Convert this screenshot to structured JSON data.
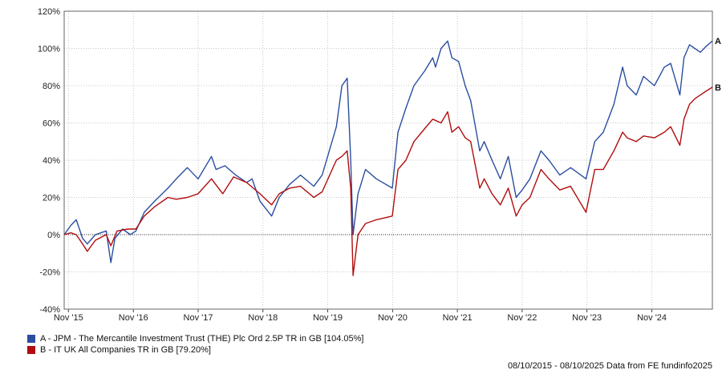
{
  "chart_data": {
    "type": "line",
    "ylim": [
      -40,
      120
    ],
    "yticks": [
      "120%",
      "100%",
      "80%",
      "60%",
      "40%",
      "20%",
      "0%",
      "-20%",
      "-40%"
    ],
    "ytick_values": [
      120,
      100,
      80,
      60,
      40,
      20,
      0,
      -20,
      -40
    ],
    "xlim": [
      "2015-10-08",
      "2025-10-08"
    ],
    "xticks": [
      "Nov '15",
      "Nov '16",
      "Nov '17",
      "Nov '18",
      "Nov '19",
      "Nov '20",
      "Nov '21",
      "Nov '22",
      "Nov '23",
      "Nov '24"
    ],
    "xtick_dates": [
      "2015-11-01",
      "2016-11-01",
      "2017-11-01",
      "2018-11-01",
      "2019-11-01",
      "2020-11-01",
      "2021-11-01",
      "2022-11-01",
      "2023-11-01",
      "2024-11-01"
    ],
    "grid": true,
    "series": [
      {
        "name": "A - JPM - The Mercantile Investment Trust (THE) Plc Ord 2.5P TR in GB [104.05%]",
        "end_label": "A",
        "color": "#2a4ea0",
        "points": [
          [
            "2015-10-08",
            0
          ],
          [
            "2015-11-15",
            5
          ],
          [
            "2015-12-15",
            8
          ],
          [
            "2016-01-20",
            -2
          ],
          [
            "2016-02-15",
            -5
          ],
          [
            "2016-04-01",
            0
          ],
          [
            "2016-06-01",
            2
          ],
          [
            "2016-06-27",
            -15
          ],
          [
            "2016-07-20",
            -2
          ],
          [
            "2016-09-01",
            3
          ],
          [
            "2016-10-15",
            0
          ],
          [
            "2016-11-15",
            2
          ],
          [
            "2017-01-01",
            12
          ],
          [
            "2017-03-01",
            18
          ],
          [
            "2017-05-15",
            25
          ],
          [
            "2017-07-01",
            30
          ],
          [
            "2017-09-01",
            36
          ],
          [
            "2017-11-01",
            30
          ],
          [
            "2018-01-15",
            42
          ],
          [
            "2018-02-10",
            35
          ],
          [
            "2018-04-01",
            37
          ],
          [
            "2018-06-01",
            32
          ],
          [
            "2018-08-01",
            28
          ],
          [
            "2018-09-01",
            30
          ],
          [
            "2018-10-15",
            18
          ],
          [
            "2018-12-20",
            10
          ],
          [
            "2019-02-01",
            20
          ],
          [
            "2019-04-01",
            27
          ],
          [
            "2019-06-01",
            32
          ],
          [
            "2019-08-15",
            26
          ],
          [
            "2019-10-01",
            32
          ],
          [
            "2019-12-20",
            58
          ],
          [
            "2020-01-20",
            80
          ],
          [
            "2020-02-19",
            84
          ],
          [
            "2020-03-10",
            40
          ],
          [
            "2020-03-23",
            0
          ],
          [
            "2020-04-20",
            22
          ],
          [
            "2020-06-01",
            35
          ],
          [
            "2020-08-01",
            30
          ],
          [
            "2020-10-30",
            25
          ],
          [
            "2020-12-01",
            55
          ],
          [
            "2021-01-15",
            68
          ],
          [
            "2021-03-01",
            80
          ],
          [
            "2021-05-01",
            88
          ],
          [
            "2021-06-15",
            95
          ],
          [
            "2021-07-01",
            90
          ],
          [
            "2021-08-01",
            100
          ],
          [
            "2021-09-07",
            104
          ],
          [
            "2021-10-01",
            95
          ],
          [
            "2021-11-08",
            93
          ],
          [
            "2021-12-15",
            80
          ],
          [
            "2022-01-15",
            72
          ],
          [
            "2022-03-07",
            45
          ],
          [
            "2022-04-01",
            50
          ],
          [
            "2022-05-15",
            40
          ],
          [
            "2022-07-01",
            30
          ],
          [
            "2022-08-15",
            42
          ],
          [
            "2022-09-28",
            20
          ],
          [
            "2022-11-01",
            24
          ],
          [
            "2022-12-15",
            30
          ],
          [
            "2023-02-15",
            45
          ],
          [
            "2023-04-01",
            40
          ],
          [
            "2023-06-01",
            32
          ],
          [
            "2023-08-01",
            36
          ],
          [
            "2023-10-27",
            30
          ],
          [
            "2023-12-15",
            50
          ],
          [
            "2024-02-01",
            55
          ],
          [
            "2024-04-01",
            70
          ],
          [
            "2024-05-20",
            90
          ],
          [
            "2024-06-15",
            80
          ],
          [
            "2024-08-05",
            75
          ],
          [
            "2024-09-15",
            85
          ],
          [
            "2024-11-15",
            80
          ],
          [
            "2025-01-10",
            90
          ],
          [
            "2025-02-15",
            92
          ],
          [
            "2025-04-08",
            75
          ],
          [
            "2025-05-01",
            95
          ],
          [
            "2025-06-01",
            102
          ],
          [
            "2025-07-01",
            100
          ],
          [
            "2025-08-01",
            98
          ],
          [
            "2025-09-01",
            101
          ],
          [
            "2025-10-08",
            104.05
          ]
        ]
      },
      {
        "name": "B - IT UK All Companies TR in GB [79.20%]",
        "end_label": "B",
        "color": "#b00d0d",
        "points": [
          [
            "2015-10-08",
            0
          ],
          [
            "2015-11-15",
            1
          ],
          [
            "2015-12-15",
            0
          ],
          [
            "2016-01-20",
            -5
          ],
          [
            "2016-02-15",
            -9
          ],
          [
            "2016-04-01",
            -3
          ],
          [
            "2016-06-01",
            0
          ],
          [
            "2016-06-27",
            -6
          ],
          [
            "2016-08-01",
            2
          ],
          [
            "2016-10-01",
            3
          ],
          [
            "2016-11-15",
            3
          ],
          [
            "2017-01-01",
            10
          ],
          [
            "2017-03-01",
            15
          ],
          [
            "2017-05-15",
            20
          ],
          [
            "2017-07-01",
            19
          ],
          [
            "2017-09-01",
            20
          ],
          [
            "2017-11-01",
            22
          ],
          [
            "2018-01-15",
            30
          ],
          [
            "2018-03-20",
            22
          ],
          [
            "2018-05-20",
            31
          ],
          [
            "2018-08-01",
            28
          ],
          [
            "2018-10-15",
            22
          ],
          [
            "2018-12-20",
            16
          ],
          [
            "2019-02-01",
            22
          ],
          [
            "2019-04-01",
            25
          ],
          [
            "2019-06-01",
            26
          ],
          [
            "2019-08-15",
            20
          ],
          [
            "2019-10-01",
            23
          ],
          [
            "2019-12-20",
            40
          ],
          [
            "2020-01-20",
            42
          ],
          [
            "2020-02-19",
            45
          ],
          [
            "2020-03-10",
            25
          ],
          [
            "2020-03-23",
            -22
          ],
          [
            "2020-04-20",
            0
          ],
          [
            "2020-06-01",
            6
          ],
          [
            "2020-08-01",
            8
          ],
          [
            "2020-10-30",
            10
          ],
          [
            "2020-12-01",
            35
          ],
          [
            "2021-01-15",
            40
          ],
          [
            "2021-03-01",
            50
          ],
          [
            "2021-05-01",
            57
          ],
          [
            "2021-06-15",
            62
          ],
          [
            "2021-08-01",
            60
          ],
          [
            "2021-09-07",
            66
          ],
          [
            "2021-10-01",
            55
          ],
          [
            "2021-11-08",
            58
          ],
          [
            "2021-12-15",
            52
          ],
          [
            "2022-01-15",
            50
          ],
          [
            "2022-03-07",
            25
          ],
          [
            "2022-04-01",
            30
          ],
          [
            "2022-05-15",
            22
          ],
          [
            "2022-07-01",
            16
          ],
          [
            "2022-08-15",
            25
          ],
          [
            "2022-09-28",
            10
          ],
          [
            "2022-11-01",
            16
          ],
          [
            "2022-12-15",
            20
          ],
          [
            "2023-02-15",
            35
          ],
          [
            "2023-04-01",
            30
          ],
          [
            "2023-06-01",
            24
          ],
          [
            "2023-08-01",
            26
          ],
          [
            "2023-10-27",
            12
          ],
          [
            "2023-12-15",
            35
          ],
          [
            "2024-02-01",
            35
          ],
          [
            "2024-04-01",
            45
          ],
          [
            "2024-05-20",
            55
          ],
          [
            "2024-06-15",
            52
          ],
          [
            "2024-08-05",
            50
          ],
          [
            "2024-09-15",
            53
          ],
          [
            "2024-11-15",
            52
          ],
          [
            "2025-01-10",
            55
          ],
          [
            "2025-02-15",
            58
          ],
          [
            "2025-04-08",
            48
          ],
          [
            "2025-05-01",
            62
          ],
          [
            "2025-06-01",
            70
          ],
          [
            "2025-07-01",
            73
          ],
          [
            "2025-08-01",
            75
          ],
          [
            "2025-09-01",
            77
          ],
          [
            "2025-10-08",
            79.2
          ]
        ]
      }
    ]
  },
  "footer": {
    "text": "08/10/2015 - 08/10/2025 Data from FE fundinfo2025"
  }
}
